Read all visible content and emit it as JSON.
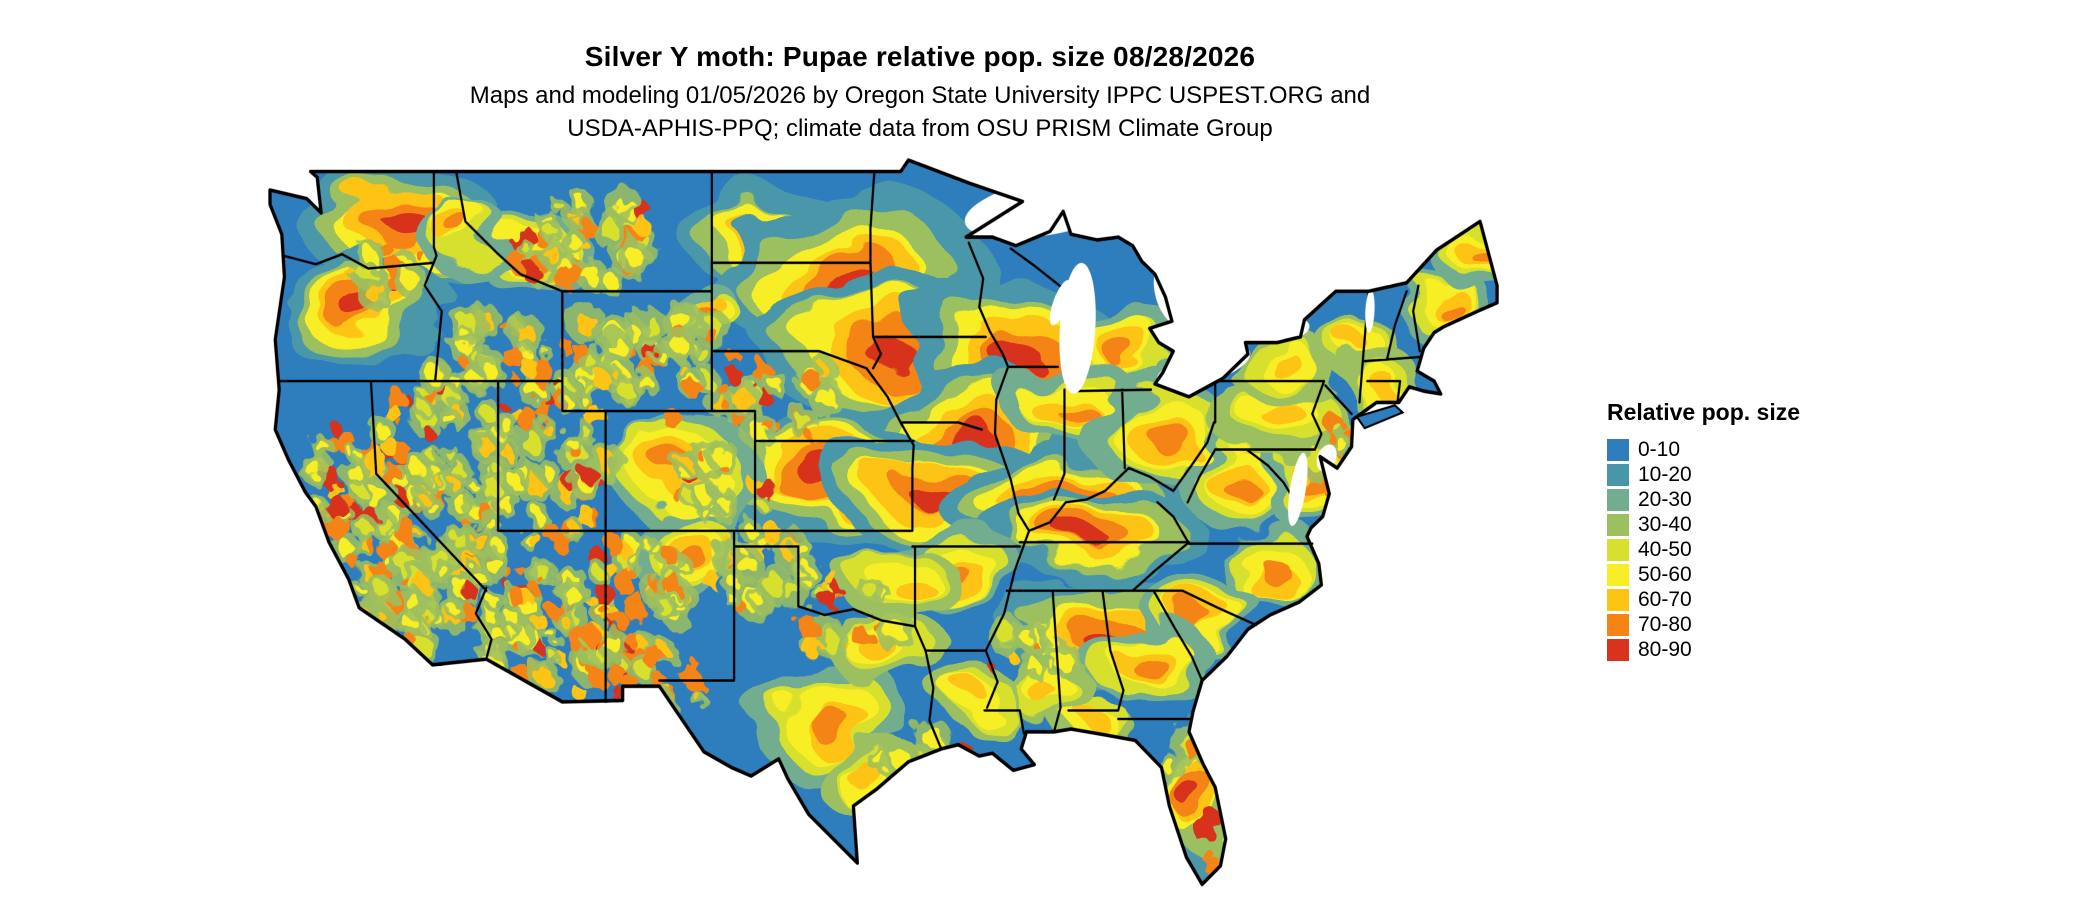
{
  "title": "Silver Y moth: Pupae relative pop. size 08/28/2026",
  "subtitle_line1": "Maps and modeling 01/05/2026 by Oregon State University IPPC USPEST.ORG and",
  "subtitle_line2": "USDA-APHIS-PPQ; climate data from OSU PRISM Climate Group",
  "map": {
    "region": "Contiguous United States",
    "base_color": "#2e7ebd"
  },
  "legend": {
    "title": "Relative pop. size",
    "items": [
      {
        "label": "0-10",
        "color": "#2e7ebd"
      },
      {
        "label": "10-20",
        "color": "#4897a9"
      },
      {
        "label": "20-30",
        "color": "#72ad90"
      },
      {
        "label": "30-40",
        "color": "#9cbf5f"
      },
      {
        "label": "40-50",
        "color": "#d8e02f"
      },
      {
        "label": "50-60",
        "color": "#f7ee26"
      },
      {
        "label": "60-70",
        "color": "#fdc412"
      },
      {
        "label": "70-80",
        "color": "#f58415"
      },
      {
        "label": "80-90",
        "color": "#d7331d"
      }
    ]
  }
}
